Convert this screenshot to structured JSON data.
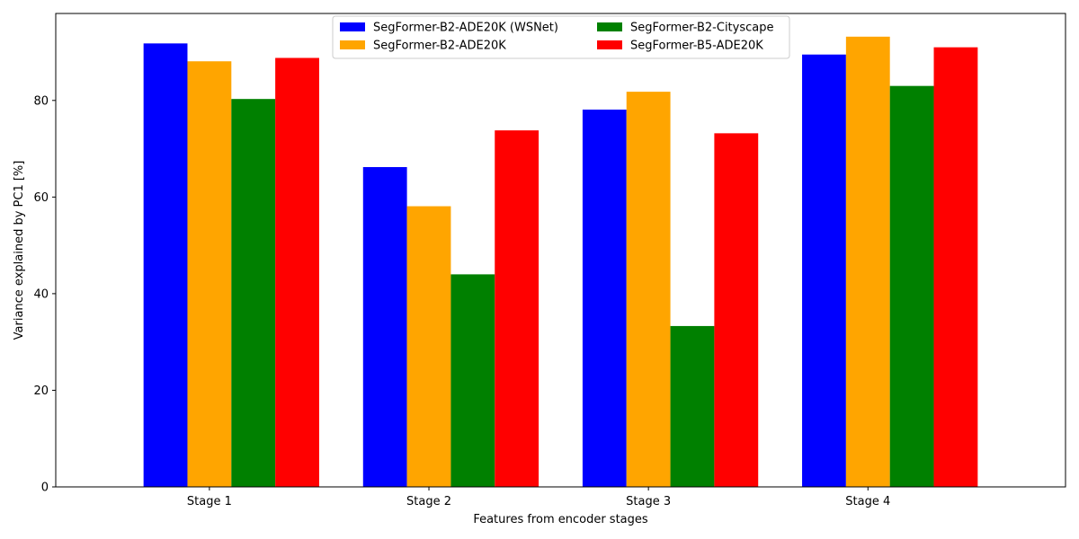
{
  "chart_data": {
    "type": "bar",
    "title": "",
    "xlabel": "Features from encoder stages",
    "ylabel": "Variance explained by PC1 [%]",
    "categories": [
      "Stage 1",
      "Stage 2",
      "Stage 3",
      "Stage 4"
    ],
    "ylim": [
      0,
      98
    ],
    "yticks": [
      0,
      20,
      40,
      60,
      80
    ],
    "grid": false,
    "legend_position": "top-center",
    "legend_columns": 2,
    "series": [
      {
        "name": "SegFormer-B2-ADE20K (WSNet)",
        "color": "#0000ff",
        "values": [
          91.8,
          66.2,
          78.1,
          89.5
        ]
      },
      {
        "name": "SegFormer-B2-ADE20K",
        "color": "#ffa500",
        "values": [
          88.1,
          58.1,
          81.8,
          93.2
        ]
      },
      {
        "name": "SegFormer-B2-Cityscape",
        "color": "#008000",
        "values": [
          80.3,
          44.0,
          33.3,
          83.0
        ]
      },
      {
        "name": "SegFormer-B5-ADE20K",
        "color": "#ff0000",
        "values": [
          88.8,
          73.8,
          73.2,
          91.0
        ]
      }
    ]
  }
}
